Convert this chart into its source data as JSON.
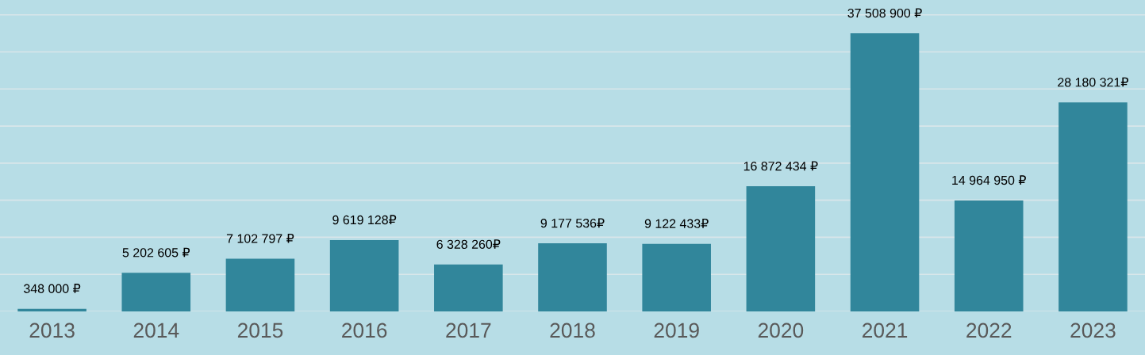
{
  "chart_data": {
    "type": "bar",
    "categories": [
      "2013",
      "2014",
      "2015",
      "2016",
      "2017",
      "2018",
      "2019",
      "2020",
      "2021",
      "2022",
      "2023"
    ],
    "values": [
      348000,
      5202605,
      7102797,
      9619128,
      6328260,
      9177536,
      9122433,
      16872434,
      37508900,
      14964950,
      28180321
    ],
    "value_labels": [
      "348 000 ₽",
      "5 202 605 ₽",
      "7 102 797 ₽",
      "9 619 128₽",
      "6 328 260₽",
      "9 177 536₽",
      "9 122 433₽",
      "16 872 434 ₽",
      "37 508 900 ₽",
      "14 964 950 ₽",
      "28 180 321₽"
    ],
    "color": "#31869b",
    "ylim": [
      0,
      42000000
    ],
    "yticks": [
      {
        "value": 0,
        "label": null
      },
      {
        "value": 5000000,
        "label": null
      },
      {
        "value": 10000000,
        "label": null
      },
      {
        "value": 15000000,
        "label": null
      },
      {
        "value": 20000000,
        "label": null
      },
      {
        "value": 25000000,
        "label": null
      },
      {
        "value": 30000000,
        "label": null
      },
      {
        "value": 35000000,
        "label": null
      },
      {
        "value": 40000000,
        "label": null
      }
    ],
    "tick_labels": "x",
    "grid": "y",
    "legend": false
  }
}
